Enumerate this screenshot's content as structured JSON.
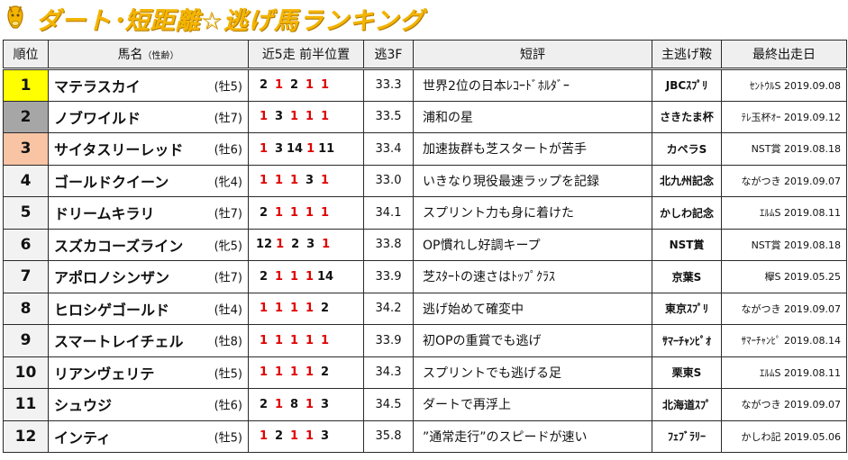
{
  "title": "ダート･短距離☆逃げ馬ランキング",
  "colors": {
    "title": "#f4b400",
    "rank1": "#ffff00",
    "rank2": "#a6a6a6",
    "rank3": "#f8c4a4",
    "rank_other": "#f2f2f2",
    "red": "#e00000"
  },
  "headers": {
    "rank": "順位",
    "name": "馬名",
    "name_sub": "（性齢）",
    "positions": "近5走 前半位置",
    "f3": "逃3F",
    "comment": "短評",
    "race": "主逃げ鞍",
    "last": "最終出走日"
  },
  "rows": [
    {
      "rank": "1",
      "name": "マテラスカイ",
      "sexage": "(牡5)",
      "positions": [
        "2",
        "1",
        "2",
        "1",
        "1"
      ],
      "f3": "33.3",
      "comment": "世界2位の日本ﾚｺｰﾄﾞﾎﾙﾀﾞｰ",
      "race": "JBCｽﾌﾟﾘ",
      "last": "ｾﾝﾄｳﾙS 2019.09.08"
    },
    {
      "rank": "2",
      "name": "ノブワイルド",
      "sexage": "(牡7)",
      "positions": [
        "1",
        "3",
        "1",
        "1",
        "1"
      ],
      "f3": "33.5",
      "comment": "浦和の星",
      "race": "さきたま杯",
      "last": "ﾃﾚ玉杯ｵｰ 2019.09.12"
    },
    {
      "rank": "3",
      "name": "サイタスリーレッド",
      "sexage": "(牡6)",
      "positions": [
        "1",
        "3",
        "14",
        "1",
        "11"
      ],
      "f3": "33.4",
      "comment": "加速抜群も芝スタートが苦手",
      "race": "カペラS",
      "last": "NST賞 2019.08.18"
    },
    {
      "rank": "4",
      "name": "ゴールドクイーン",
      "sexage": "(牝4)",
      "positions": [
        "1",
        "1",
        "1",
        "3",
        "1"
      ],
      "f3": "33.0",
      "comment": "いきなり現役最速ラップを記録",
      "race": "北九州記念",
      "last": "ながつき 2019.09.07"
    },
    {
      "rank": "5",
      "name": "ドリームキラリ",
      "sexage": "(牡7)",
      "positions": [
        "2",
        "1",
        "1",
        "1",
        "1"
      ],
      "f3": "34.1",
      "comment": "スプリント力も身に着けた",
      "race": "かしわ記念",
      "last": "ｴﾙﾑS 2019.08.11"
    },
    {
      "rank": "6",
      "name": "スズカコーズライン",
      "sexage": "(牝5)",
      "positions": [
        "12",
        "1",
        "2",
        "3",
        "1"
      ],
      "f3": "33.8",
      "comment": "OP慣れし好調キープ",
      "race": "NST賞",
      "last": "NST賞 2019.08.18"
    },
    {
      "rank": "7",
      "name": "アポロノシンザン",
      "sexage": "(牡7)",
      "positions": [
        "2",
        "1",
        "1",
        "1",
        "14"
      ],
      "f3": "33.9",
      "comment": "芝ｽﾀｰﾄの速さはﾄｯﾌﾟｸﾗｽ",
      "race": "京葉S",
      "last": "欅S 2019.05.25"
    },
    {
      "rank": "8",
      "name": "ヒロシゲゴールド",
      "sexage": "(牡4)",
      "positions": [
        "1",
        "1",
        "1",
        "1",
        "2"
      ],
      "f3": "34.2",
      "comment": "逃げ始めて確変中",
      "race": "東京ｽﾌﾟﾘ",
      "last": "ながつき 2019.09.07"
    },
    {
      "rank": "9",
      "name": "スマートレイチェル",
      "sexage": "(牡8)",
      "positions": [
        "1",
        "1",
        "1",
        "1",
        "1"
      ],
      "f3": "33.9",
      "comment": "初OPの重賞でも逃げ",
      "race": "ｻﾏｰﾁｬﾝﾋﾟｵ",
      "last": "ｻﾏｰﾁｬﾝﾋﾟ 2019.08.14"
    },
    {
      "rank": "10",
      "name": "リアンヴェリテ",
      "sexage": "(牡5)",
      "positions": [
        "1",
        "1",
        "1",
        "1",
        "2"
      ],
      "f3": "34.3",
      "comment": "スプリントでも逃げる足",
      "race": "栗東S",
      "last": "ｴﾙﾑS 2019.08.11"
    },
    {
      "rank": "11",
      "name": "シュウジ",
      "sexage": "(牡6)",
      "positions": [
        "2",
        "1",
        "8",
        "1",
        "3"
      ],
      "f3": "34.5",
      "comment": "ダートで再浮上",
      "race": "北海道ｽﾌﾟ",
      "last": "ながつき 2019.09.07"
    },
    {
      "rank": "12",
      "name": "インティ",
      "sexage": "(牡5)",
      "positions": [
        "1",
        "2",
        "1",
        "1",
        "3"
      ],
      "f3": "35.8",
      "comment": "”通常走行”のスピードが速い",
      "race": "ﾌｪﾌﾞﾗﾘｰ",
      "last": "かしわ記 2019.05.06"
    }
  ]
}
